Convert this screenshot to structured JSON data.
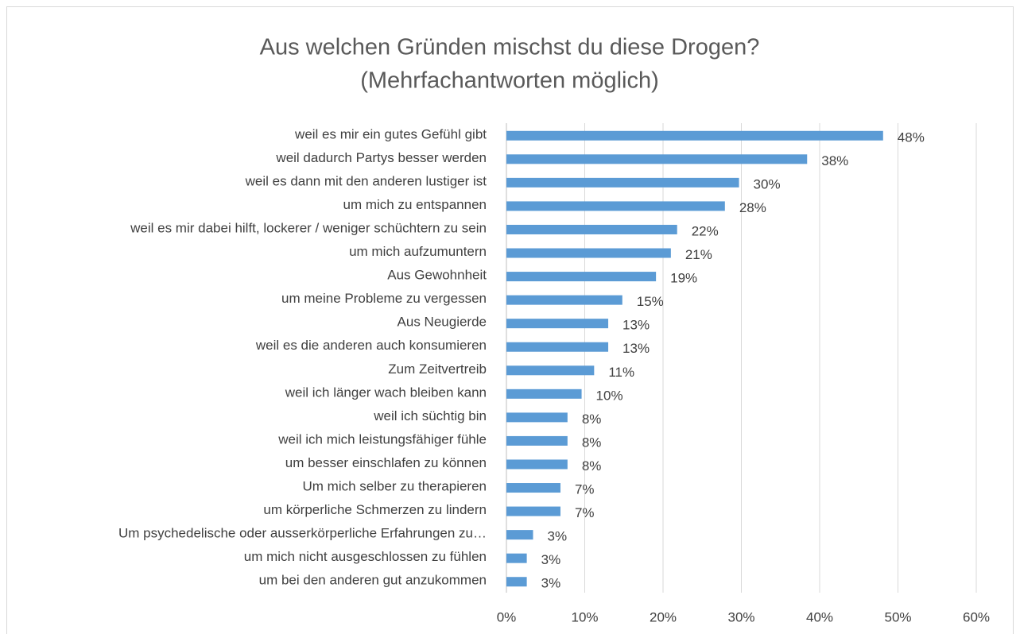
{
  "chart_data": {
    "type": "bar",
    "orientation": "horizontal",
    "title": [
      "Aus welchen Gründen mischst du diese Drogen?",
      "(Mehrfachantworten möglich)"
    ],
    "categories": [
      "weil es mir ein gutes Gefühl gibt",
      "weil dadurch Partys besser werden",
      "weil es dann mit den anderen lustiger ist",
      "um mich zu entspannen",
      "weil es mir dabei hilft, lockerer / weniger schüchtern zu sein",
      "um mich aufzumuntern",
      "Aus Gewohnheit",
      "um meine Probleme zu vergessen",
      "Aus Neugierde",
      "weil es die anderen auch konsumieren",
      "Zum Zeitvertreib",
      "weil ich länger wach bleiben kann",
      "weil ich süchtig bin",
      "weil ich mich leistungsfähiger fühle",
      "um besser einschlafen zu können",
      "Um mich selber zu therapieren",
      "um körperliche Schmerzen zu lindern",
      "Um psychedelische oder ausserkörperliche Erfahrungen zu…",
      "um mich nicht ausgeschlossen zu fühlen",
      "um bei den anderen gut anzukommen"
    ],
    "values": [
      48.1,
      38.4,
      29.7,
      27.9,
      21.8,
      21.0,
      19.1,
      14.8,
      13.0,
      13.0,
      11.2,
      9.6,
      7.8,
      7.8,
      7.8,
      6.9,
      6.9,
      3.4,
      2.6,
      2.6
    ],
    "value_labels": [
      "48%",
      "38%",
      "30%",
      "28%",
      "22%",
      "21%",
      "19%",
      "15%",
      "13%",
      "13%",
      "11%",
      "10%",
      "8%",
      "8%",
      "8%",
      "7%",
      "7%",
      "3%",
      "3%",
      "3%"
    ],
    "color": "#5b9bd5",
    "xlim": [
      0,
      60
    ],
    "xticks": [
      {
        "value": 0,
        "label": "0%"
      },
      {
        "value": 10,
        "label": "10%"
      },
      {
        "value": 20,
        "label": "20%"
      },
      {
        "value": 30,
        "label": "30%"
      },
      {
        "value": 40,
        "label": "40%"
      },
      {
        "value": 50,
        "label": "50%"
      },
      {
        "value": 60,
        "label": "60%"
      }
    ],
    "grid": true
  }
}
